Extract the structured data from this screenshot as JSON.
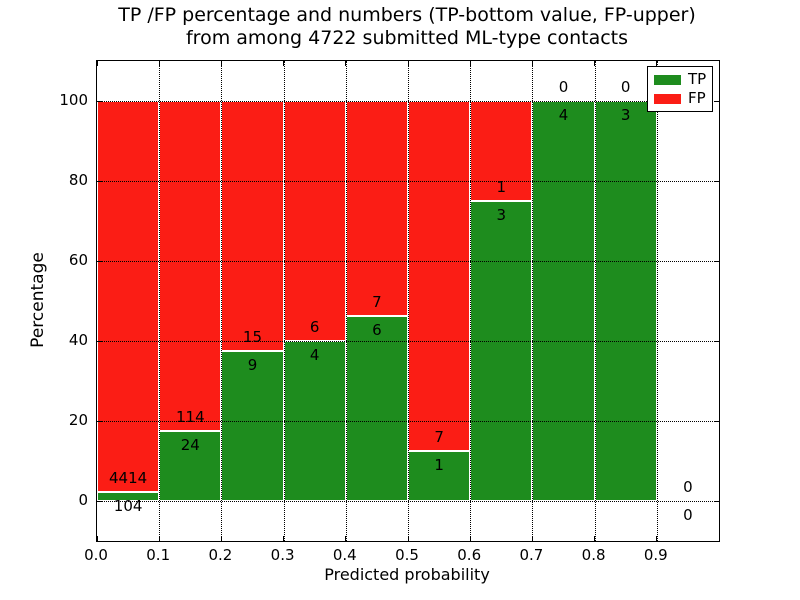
{
  "figure": {
    "title_line1": "TP /FP percentage and numbers (TP-bottom value, FP-upper)",
    "title_line2": "from among 4722 submitted ML-type contacts"
  },
  "chart_data": {
    "type": "bar",
    "stacked": true,
    "title": "TP /FP percentage and numbers (TP-bottom value, FP-upper)\nfrom among 4722 submitted ML-type contacts",
    "xlabel": "Predicted probability",
    "ylabel": "Percentage",
    "total_submitted_contacts": 4722,
    "xlim": [
      0.0,
      1.0
    ],
    "ylim": [
      -10,
      110
    ],
    "xticks": [
      0.0,
      0.1,
      0.2,
      0.3,
      0.4,
      0.5,
      0.6,
      0.7,
      0.8,
      0.9
    ],
    "yticks": [
      0,
      20,
      40,
      60,
      80,
      100
    ],
    "grid": "dotted",
    "legend": {
      "position": "upper right",
      "entries": [
        {
          "label": "TP",
          "color": "#1e8c1e"
        },
        {
          "label": "FP",
          "color": "#fb1d15"
        }
      ]
    },
    "bins": [
      {
        "x_start": 0.0,
        "x_end": 0.1,
        "tp_count": 104,
        "fp_count": 4414,
        "tp_pct": 2.3,
        "fp_pct": 97.7,
        "has_bar": true
      },
      {
        "x_start": 0.1,
        "x_end": 0.2,
        "tp_count": 24,
        "fp_count": 114,
        "tp_pct": 17.4,
        "fp_pct": 82.6,
        "has_bar": true
      },
      {
        "x_start": 0.2,
        "x_end": 0.3,
        "tp_count": 9,
        "fp_count": 15,
        "tp_pct": 37.5,
        "fp_pct": 62.5,
        "has_bar": true
      },
      {
        "x_start": 0.3,
        "x_end": 0.4,
        "tp_count": 4,
        "fp_count": 6,
        "tp_pct": 40.0,
        "fp_pct": 60.0,
        "has_bar": true
      },
      {
        "x_start": 0.4,
        "x_end": 0.5,
        "tp_count": 6,
        "fp_count": 7,
        "tp_pct": 46.2,
        "fp_pct": 53.8,
        "has_bar": true
      },
      {
        "x_start": 0.5,
        "x_end": 0.6,
        "tp_count": 1,
        "fp_count": 7,
        "tp_pct": 12.5,
        "fp_pct": 87.5,
        "has_bar": true
      },
      {
        "x_start": 0.6,
        "x_end": 0.7,
        "tp_count": 3,
        "fp_count": 1,
        "tp_pct": 75.0,
        "fp_pct": 25.0,
        "has_bar": true
      },
      {
        "x_start": 0.7,
        "x_end": 0.8,
        "tp_count": 4,
        "fp_count": 0,
        "tp_pct": 100.0,
        "fp_pct": 0.0,
        "has_bar": true
      },
      {
        "x_start": 0.8,
        "x_end": 0.9,
        "tp_count": 3,
        "fp_count": 0,
        "tp_pct": 100.0,
        "fp_pct": 0.0,
        "has_bar": true
      },
      {
        "x_start": 0.9,
        "x_end": 1.0,
        "tp_count": 0,
        "fp_count": 0,
        "tp_pct": 0.0,
        "fp_pct": 0.0,
        "has_bar": false
      }
    ]
  },
  "colors": {
    "tp": "#1e8c1e",
    "fp": "#fb1d15",
    "bar_edge": "#ffffff",
    "grid": "#000000",
    "frame": "#000000",
    "text": "#000000",
    "background": "#ffffff"
  }
}
